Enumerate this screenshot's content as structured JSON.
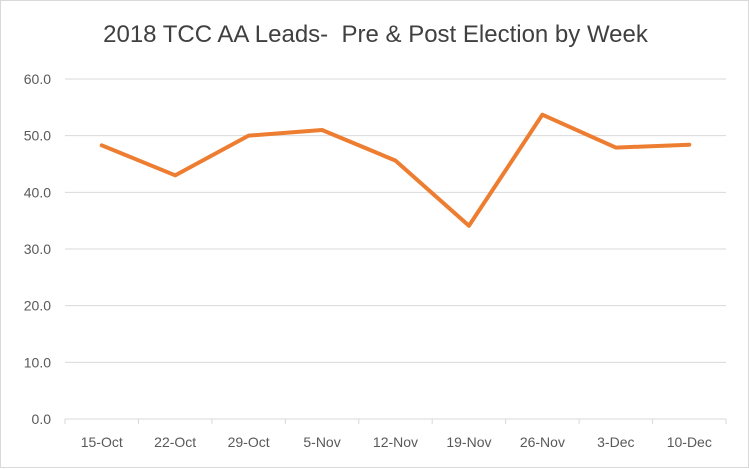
{
  "chart_data": {
    "type": "line",
    "title": "2018 TCC AA Leads-  Pre & Post Election by Week",
    "xlabel": "",
    "ylabel": "",
    "categories": [
      "15-Oct",
      "22-Oct",
      "29-Oct",
      "5-Nov",
      "12-Nov",
      "19-Nov",
      "26-Nov",
      "3-Dec",
      "10-Dec"
    ],
    "series": [
      {
        "values": [
          48.3,
          43.0,
          50.0,
          51.0,
          45.6,
          34.1,
          53.7,
          47.9,
          48.4
        ]
      }
    ],
    "ylim": [
      0,
      60
    ],
    "yticks": [
      "0.0",
      "10.0",
      "20.0",
      "30.0",
      "40.0",
      "50.0",
      "60.0"
    ],
    "grid": true,
    "legend": "none",
    "colors": {
      "line": "#ED7D31",
      "grid": "#D9D9D9",
      "text": "#595959",
      "title": "#404040"
    }
  }
}
